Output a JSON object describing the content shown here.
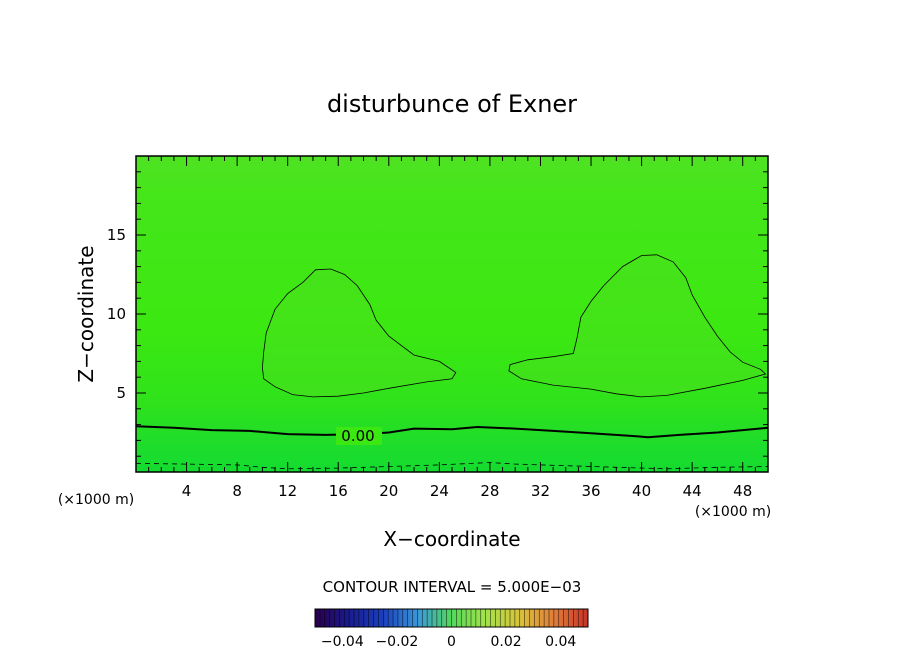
{
  "chart_data": {
    "type": "heatmap",
    "title": "disturbunce of Exner",
    "xlabel": "X−coordinate",
    "ylabel": "Z−coordinate",
    "x_unit": "(×1000 m)",
    "y_unit": "(×1000 m)",
    "xlim": [
      0,
      50
    ],
    "ylim": [
      0,
      20
    ],
    "x_ticks": [
      4,
      8,
      12,
      16,
      20,
      24,
      28,
      32,
      36,
      40,
      44,
      48
    ],
    "y_ticks": [
      5,
      10,
      15
    ],
    "contour_label": "0.00",
    "contour_interval_text": "CONTOUR INTERVAL = 5.000E−03",
    "colorbar": {
      "range": [
        -0.05,
        0.05
      ],
      "ticks": [
        -0.04,
        -0.02,
        0,
        0.02,
        0.04
      ],
      "tick_labels": [
        "−0.04",
        "−0.02",
        "0",
        "0.02",
        "0.04"
      ]
    },
    "contours": [
      {
        "name": "zero-line",
        "style": "solid-thick",
        "points": [
          [
            0,
            2.9
          ],
          [
            3,
            2.8
          ],
          [
            6,
            2.65
          ],
          [
            9,
            2.6
          ],
          [
            12,
            2.4
          ],
          [
            15,
            2.35
          ],
          [
            18,
            2.4
          ],
          [
            20,
            2.5
          ],
          [
            22,
            2.75
          ],
          [
            25,
            2.7
          ],
          [
            27,
            2.85
          ],
          [
            30,
            2.75
          ],
          [
            33,
            2.6
          ],
          [
            36,
            2.45
          ],
          [
            39,
            2.3
          ],
          [
            40.5,
            2.2
          ],
          [
            43,
            2.35
          ],
          [
            46,
            2.5
          ],
          [
            50,
            2.8
          ]
        ]
      },
      {
        "name": "left-cell",
        "style": "solid-thin",
        "points": [
          [
            10,
            6.6
          ],
          [
            10.1,
            5.9
          ],
          [
            11,
            5.4
          ],
          [
            12.4,
            4.9
          ],
          [
            14,
            4.75
          ],
          [
            16,
            4.8
          ],
          [
            18,
            5
          ],
          [
            20,
            5.3
          ],
          [
            23,
            5.7
          ],
          [
            25,
            5.9
          ],
          [
            25.3,
            6.3
          ],
          [
            24,
            7
          ],
          [
            22,
            7.4
          ],
          [
            21,
            8
          ],
          [
            20,
            8.6
          ],
          [
            19,
            9.6
          ],
          [
            18.5,
            10.6
          ],
          [
            17.5,
            11.8
          ],
          [
            16.5,
            12.5
          ],
          [
            15.4,
            12.85
          ],
          [
            14.2,
            12.8
          ],
          [
            13.2,
            12
          ],
          [
            12,
            11.3
          ],
          [
            11,
            10.3
          ],
          [
            10.3,
            8.8
          ],
          [
            10.1,
            7.6
          ],
          [
            10,
            6.6
          ]
        ]
      },
      {
        "name": "right-cell",
        "style": "solid-thin",
        "points": [
          [
            29.5,
            6.4
          ],
          [
            30.5,
            5.9
          ],
          [
            33,
            5.5
          ],
          [
            36,
            5.25
          ],
          [
            38,
            4.95
          ],
          [
            40,
            4.75
          ],
          [
            42,
            4.85
          ],
          [
            45,
            5.3
          ],
          [
            48,
            5.8
          ],
          [
            49.8,
            6.2
          ],
          [
            49.4,
            6.5
          ],
          [
            48,
            6.95
          ],
          [
            47,
            7.6
          ],
          [
            46,
            8.6
          ],
          [
            45,
            9.8
          ],
          [
            44,
            11.2
          ],
          [
            43.5,
            12.3
          ],
          [
            42.5,
            13.3
          ],
          [
            41.2,
            13.75
          ],
          [
            40,
            13.7
          ],
          [
            38.5,
            13
          ],
          [
            37,
            11.8
          ],
          [
            36,
            10.8
          ],
          [
            35.2,
            9.8
          ],
          [
            34.9,
            8.5
          ],
          [
            34.6,
            7.5
          ],
          [
            33,
            7.3
          ],
          [
            31,
            7.1
          ],
          [
            29.6,
            6.8
          ],
          [
            29.5,
            6.4
          ]
        ]
      },
      {
        "name": "negative-line",
        "style": "dashed",
        "points": [
          [
            0,
            0.55
          ],
          [
            4,
            0.5
          ],
          [
            8,
            0.45
          ],
          [
            10,
            0.3
          ],
          [
            12,
            0.2
          ],
          [
            16,
            0.25
          ],
          [
            20,
            0.35
          ],
          [
            24,
            0.45
          ],
          [
            28,
            0.6
          ],
          [
            30,
            0.5
          ],
          [
            34,
            0.4
          ],
          [
            38,
            0.3
          ],
          [
            42,
            0.2
          ],
          [
            46,
            0.3
          ],
          [
            50,
            0.35
          ]
        ]
      }
    ]
  }
}
